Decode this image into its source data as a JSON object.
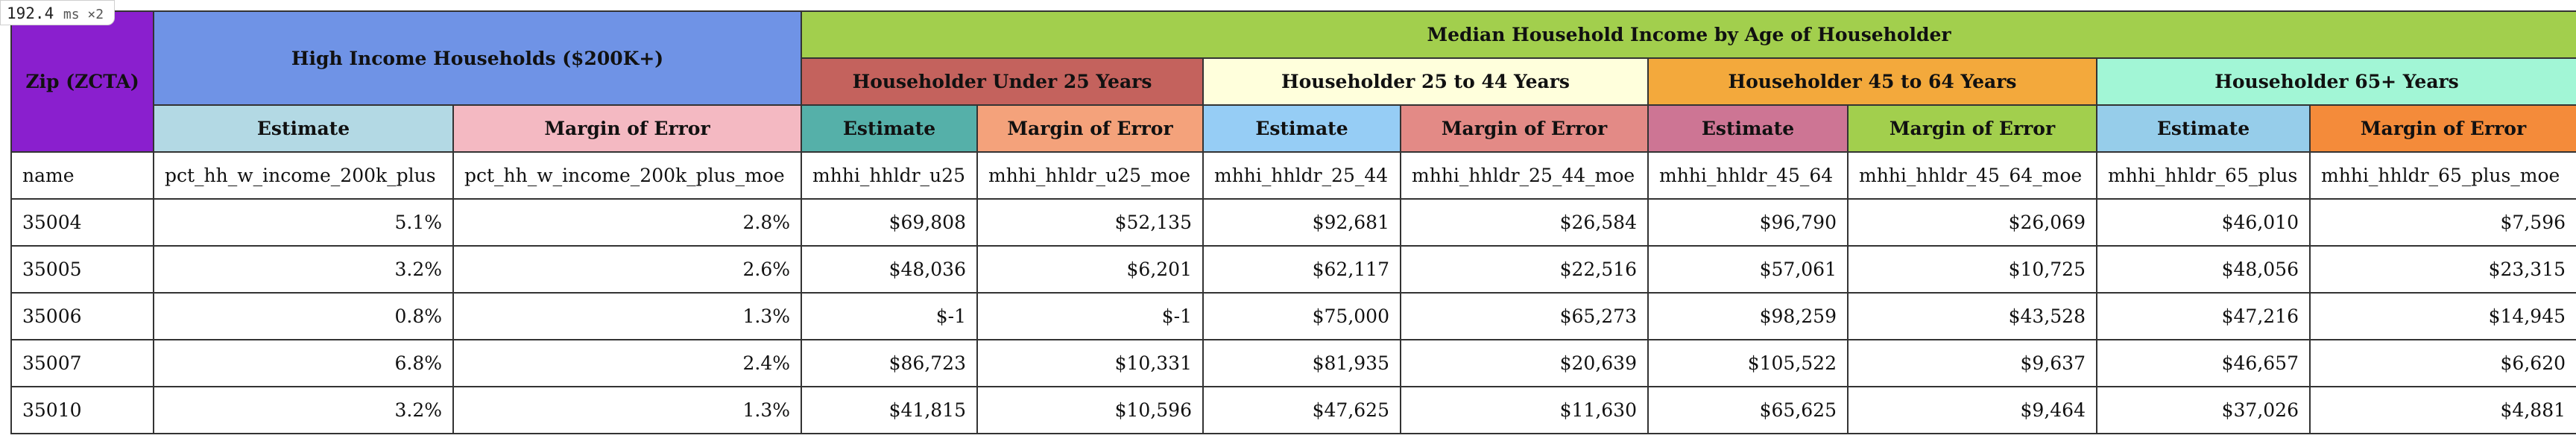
{
  "perf_badge": {
    "value": "192.4",
    "unit": "ms ×2"
  },
  "header": {
    "zip_label": "Zip (ZCTA)",
    "high_income_label": "High Income Households ($200K+)",
    "median_income_label": "Median Household Income by Age of Householder",
    "age_groups": [
      {
        "label": "Householder Under 25 Years",
        "color": "#c4625d"
      },
      {
        "label": "Householder 25 to 44 Years",
        "color": "#ffffdc"
      },
      {
        "label": "Householder 45 to 64 Years",
        "color": "#f3a93c"
      },
      {
        "label": "Householder 65+ Years",
        "color": "#a2f6d6"
      }
    ],
    "colors": {
      "zip": "#8a1fce",
      "high_income": "#6f93e6",
      "median_income": "#a2cf4d"
    },
    "sub_columns": [
      {
        "label": "Estimate",
        "color": "#b3d9e4"
      },
      {
        "label": "Margin of Error",
        "color": "#f4b9c2"
      },
      {
        "label": "Estimate",
        "color": "#55b0a9"
      },
      {
        "label": "Margin of Error",
        "color": "#f4a27b"
      },
      {
        "label": "Estimate",
        "color": "#96cdf5"
      },
      {
        "label": "Margin of Error",
        "color": "#e38a86"
      },
      {
        "label": "Estimate",
        "color": "#cd7594"
      },
      {
        "label": "Margin of Error",
        "color": "#a2cf4d"
      },
      {
        "label": "Estimate",
        "color": "#96cdea"
      },
      {
        "label": "Margin of Error",
        "color": "#f48b3a"
      }
    ]
  },
  "field_names": [
    "name",
    "pct_hh_w_income_200k_plus",
    "pct_hh_w_income_200k_plus_moe",
    "mhhi_hhldr_u25",
    "mhhi_hhldr_u25_moe",
    "mhhi_hhldr_25_44",
    "mhhi_hhldr_25_44_moe",
    "mhhi_hhldr_45_64",
    "mhhi_hhldr_45_64_moe",
    "mhhi_hhldr_65_plus",
    "mhhi_hhldr_65_plus_moe"
  ],
  "rows": [
    [
      "35004",
      "5.1%",
      "2.8%",
      "$69,808",
      "$52,135",
      "$92,681",
      "$26,584",
      "$96,790",
      "$26,069",
      "$46,010",
      "$7,596"
    ],
    [
      "35005",
      "3.2%",
      "2.6%",
      "$48,036",
      "$6,201",
      "$62,117",
      "$22,516",
      "$57,061",
      "$10,725",
      "$48,056",
      "$23,315"
    ],
    [
      "35006",
      "0.8%",
      "1.3%",
      "$-1",
      "$-1",
      "$75,000",
      "$65,273",
      "$98,259",
      "$43,528",
      "$47,216",
      "$14,945"
    ],
    [
      "35007",
      "6.8%",
      "2.4%",
      "$86,723",
      "$10,331",
      "$81,935",
      "$20,639",
      "$105,522",
      "$9,637",
      "$46,657",
      "$6,620"
    ],
    [
      "35010",
      "3.2%",
      "1.3%",
      "$41,815",
      "$10,596",
      "$47,625",
      "$11,630",
      "$65,625",
      "$9,464",
      "$37,026",
      "$4,881"
    ]
  ]
}
